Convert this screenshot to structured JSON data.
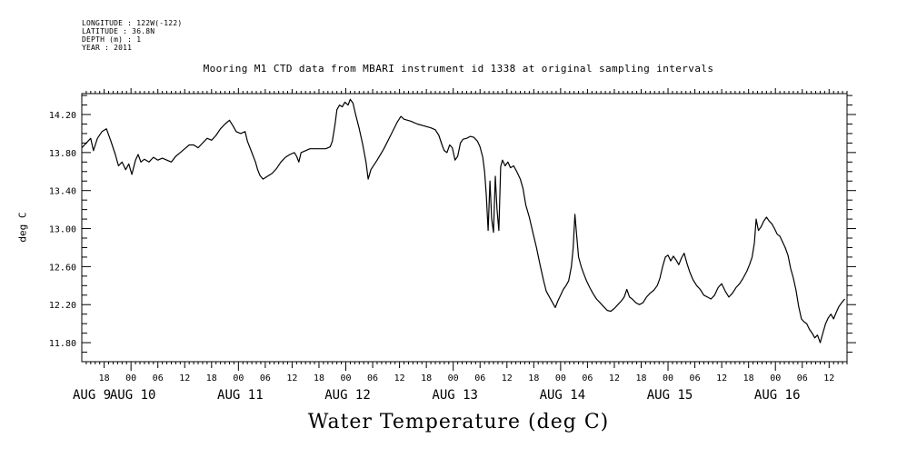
{
  "meta": {
    "longitude": "LONGITUDE : 122W(-122)",
    "latitude": "LATITUDE : 36.8N",
    "depth": "DEPTH (m) : 1",
    "year": "YEAR : 2011"
  },
  "chart_data": {
    "type": "line",
    "title": "Mooring M1 CTD data from MBARI instrument id 1338 at original sampling intervals",
    "ylabel": "deg C",
    "bottom_label": "Water Temperature (deg C)",
    "ylim": [
      11.6,
      14.42
    ],
    "xlim": [
      13.0,
      184.0
    ],
    "x_unit": "hours since AUG 9 00:00",
    "y_ticks": [
      {
        "value": 11.8,
        "label": "11.80"
      },
      {
        "value": 12.2,
        "label": "12.20"
      },
      {
        "value": 12.6,
        "label": "12.60"
      },
      {
        "value": 13.0,
        "label": "13.00"
      },
      {
        "value": 13.4,
        "label": "13.40"
      },
      {
        "value": 13.8,
        "label": "13.80"
      },
      {
        "value": 14.2,
        "label": "14.20"
      }
    ],
    "hour_labels": [
      {
        "x": 18,
        "label": "18"
      },
      {
        "x": 24,
        "label": "00"
      },
      {
        "x": 30,
        "label": "06"
      },
      {
        "x": 36,
        "label": "12"
      },
      {
        "x": 42,
        "label": "18"
      },
      {
        "x": 48,
        "label": "00"
      },
      {
        "x": 54,
        "label": "06"
      },
      {
        "x": 60,
        "label": "12"
      },
      {
        "x": 66,
        "label": "18"
      },
      {
        "x": 72,
        "label": "00"
      },
      {
        "x": 78,
        "label": "06"
      },
      {
        "x": 84,
        "label": "12"
      },
      {
        "x": 90,
        "label": "18"
      },
      {
        "x": 96,
        "label": "00"
      },
      {
        "x": 102,
        "label": "06"
      },
      {
        "x": 108,
        "label": "12"
      },
      {
        "x": 114,
        "label": "18"
      },
      {
        "x": 120,
        "label": "00"
      },
      {
        "x": 126,
        "label": "06"
      },
      {
        "x": 132,
        "label": "12"
      },
      {
        "x": 138,
        "label": "18"
      },
      {
        "x": 144,
        "label": "00"
      },
      {
        "x": 150,
        "label": "06"
      },
      {
        "x": 156,
        "label": "12"
      },
      {
        "x": 162,
        "label": "18"
      },
      {
        "x": 168,
        "label": "00"
      },
      {
        "x": 174,
        "label": "06"
      },
      {
        "x": 180,
        "label": "12"
      }
    ],
    "day_labels": [
      {
        "x": 0,
        "label": "AUG  9"
      },
      {
        "x": 24,
        "label": "AUG 10"
      },
      {
        "x": 48,
        "label": "AUG 11"
      },
      {
        "x": 72,
        "label": "AUG 12"
      },
      {
        "x": 96,
        "label": "AUG 13"
      },
      {
        "x": 120,
        "label": "AUG 14"
      },
      {
        "x": 144,
        "label": "AUG 15"
      },
      {
        "x": 168,
        "label": "AUG 16"
      }
    ],
    "series": [
      {
        "color": "#000000",
        "points": [
          [
            13.0,
            13.85
          ],
          [
            15.0,
            13.95
          ],
          [
            15.6,
            13.82
          ],
          [
            16.5,
            13.95
          ],
          [
            17.5,
            14.02
          ],
          [
            18.5,
            14.05
          ],
          [
            19.5,
            13.92
          ],
          [
            20.5,
            13.78
          ],
          [
            21.2,
            13.66
          ],
          [
            22.0,
            13.7
          ],
          [
            22.8,
            13.62
          ],
          [
            23.5,
            13.68
          ],
          [
            24.2,
            13.57
          ],
          [
            25.0,
            13.72
          ],
          [
            25.6,
            13.78
          ],
          [
            26.2,
            13.7
          ],
          [
            27.0,
            13.73
          ],
          [
            28.0,
            13.7
          ],
          [
            29.0,
            13.75
          ],
          [
            30.0,
            13.72
          ],
          [
            31.0,
            13.74
          ],
          [
            32.0,
            13.72
          ],
          [
            33.0,
            13.7
          ],
          [
            34.0,
            13.76
          ],
          [
            35.0,
            13.8
          ],
          [
            36.0,
            13.84
          ],
          [
            37.0,
            13.88
          ],
          [
            38.0,
            13.88
          ],
          [
            39.0,
            13.85
          ],
          [
            40.0,
            13.9
          ],
          [
            41.0,
            13.95
          ],
          [
            42.0,
            13.93
          ],
          [
            43.0,
            13.98
          ],
          [
            44.0,
            14.05
          ],
          [
            45.0,
            14.1
          ],
          [
            46.0,
            14.14
          ],
          [
            46.8,
            14.08
          ],
          [
            47.5,
            14.02
          ],
          [
            48.5,
            14.0
          ],
          [
            49.5,
            14.02
          ],
          [
            50.0,
            13.92
          ],
          [
            51.0,
            13.8
          ],
          [
            51.8,
            13.7
          ],
          [
            52.3,
            13.62
          ],
          [
            52.8,
            13.56
          ],
          [
            53.5,
            13.52
          ],
          [
            54.5,
            13.55
          ],
          [
            55.5,
            13.58
          ],
          [
            56.5,
            13.63
          ],
          [
            57.5,
            13.7
          ],
          [
            58.5,
            13.75
          ],
          [
            59.5,
            13.78
          ],
          [
            60.5,
            13.8
          ],
          [
            61.0,
            13.76
          ],
          [
            61.5,
            13.7
          ],
          [
            62.0,
            13.8
          ],
          [
            63.0,
            13.82
          ],
          [
            64.0,
            13.84
          ],
          [
            66.0,
            13.84
          ],
          [
            67.5,
            13.84
          ],
          [
            68.5,
            13.86
          ],
          [
            69.0,
            13.92
          ],
          [
            69.6,
            14.1
          ],
          [
            70.0,
            14.25
          ],
          [
            70.6,
            14.3
          ],
          [
            71.2,
            14.28
          ],
          [
            71.8,
            14.33
          ],
          [
            72.5,
            14.3
          ],
          [
            73.0,
            14.36
          ],
          [
            73.6,
            14.32
          ],
          [
            74.2,
            14.2
          ],
          [
            75.0,
            14.05
          ],
          [
            75.8,
            13.88
          ],
          [
            76.5,
            13.7
          ],
          [
            77.0,
            13.52
          ],
          [
            77.6,
            13.62
          ],
          [
            79.0,
            13.72
          ],
          [
            80.5,
            13.84
          ],
          [
            82.0,
            13.98
          ],
          [
            83.5,
            14.12
          ],
          [
            84.3,
            14.18
          ],
          [
            85.0,
            14.15
          ],
          [
            86.5,
            14.13
          ],
          [
            88.0,
            14.1
          ],
          [
            89.5,
            14.08
          ],
          [
            91.0,
            14.06
          ],
          [
            92.0,
            14.04
          ],
          [
            92.8,
            13.98
          ],
          [
            93.5,
            13.88
          ],
          [
            94.0,
            13.82
          ],
          [
            94.6,
            13.8
          ],
          [
            95.2,
            13.88
          ],
          [
            95.8,
            13.85
          ],
          [
            96.4,
            13.72
          ],
          [
            97.0,
            13.76
          ],
          [
            97.6,
            13.9
          ],
          [
            98.2,
            13.94
          ],
          [
            99.0,
            13.95
          ],
          [
            99.8,
            13.97
          ],
          [
            100.6,
            13.96
          ],
          [
            101.4,
            13.92
          ],
          [
            102.0,
            13.86
          ],
          [
            102.6,
            13.75
          ],
          [
            103.0,
            13.6
          ],
          [
            103.4,
            13.35
          ],
          [
            103.8,
            12.98
          ],
          [
            104.2,
            13.5
          ],
          [
            104.6,
            13.1
          ],
          [
            105.0,
            12.96
          ],
          [
            105.4,
            13.55
          ],
          [
            105.8,
            13.2
          ],
          [
            106.2,
            12.98
          ],
          [
            106.6,
            13.65
          ],
          [
            107.0,
            13.72
          ],
          [
            107.6,
            13.66
          ],
          [
            108.2,
            13.7
          ],
          [
            108.8,
            13.64
          ],
          [
            109.5,
            13.66
          ],
          [
            110.2,
            13.6
          ],
          [
            111.0,
            13.52
          ],
          [
            111.6,
            13.42
          ],
          [
            112.2,
            13.25
          ],
          [
            113.0,
            13.12
          ],
          [
            113.8,
            12.96
          ],
          [
            114.6,
            12.8
          ],
          [
            115.4,
            12.62
          ],
          [
            116.2,
            12.45
          ],
          [
            116.8,
            12.34
          ],
          [
            117.5,
            12.28
          ],
          [
            118.2,
            12.22
          ],
          [
            118.8,
            12.17
          ],
          [
            119.4,
            12.24
          ],
          [
            120.0,
            12.3
          ],
          [
            120.6,
            12.36
          ],
          [
            121.2,
            12.4
          ],
          [
            121.8,
            12.45
          ],
          [
            122.4,
            12.6
          ],
          [
            122.8,
            12.8
          ],
          [
            123.2,
            13.15
          ],
          [
            123.6,
            12.92
          ],
          [
            124.0,
            12.7
          ],
          [
            124.6,
            12.6
          ],
          [
            125.2,
            12.52
          ],
          [
            125.8,
            12.45
          ],
          [
            126.5,
            12.38
          ],
          [
            127.2,
            12.32
          ],
          [
            128.0,
            12.26
          ],
          [
            128.8,
            12.22
          ],
          [
            129.6,
            12.18
          ],
          [
            130.4,
            12.14
          ],
          [
            131.2,
            12.13
          ],
          [
            132.0,
            12.16
          ],
          [
            132.8,
            12.2
          ],
          [
            133.6,
            12.24
          ],
          [
            134.2,
            12.28
          ],
          [
            134.8,
            12.36
          ],
          [
            135.4,
            12.28
          ],
          [
            136.0,
            12.26
          ],
          [
            136.8,
            12.22
          ],
          [
            137.6,
            12.2
          ],
          [
            138.4,
            12.22
          ],
          [
            139.2,
            12.28
          ],
          [
            140.0,
            12.32
          ],
          [
            140.8,
            12.35
          ],
          [
            141.6,
            12.4
          ],
          [
            142.2,
            12.48
          ],
          [
            142.8,
            12.6
          ],
          [
            143.4,
            12.7
          ],
          [
            144.0,
            12.72
          ],
          [
            144.6,
            12.66
          ],
          [
            145.2,
            12.71
          ],
          [
            145.8,
            12.67
          ],
          [
            146.4,
            12.62
          ],
          [
            147.0,
            12.69
          ],
          [
            147.6,
            12.74
          ],
          [
            148.2,
            12.64
          ],
          [
            148.8,
            12.55
          ],
          [
            149.6,
            12.46
          ],
          [
            150.4,
            12.4
          ],
          [
            151.2,
            12.36
          ],
          [
            152.0,
            12.3
          ],
          [
            152.8,
            12.28
          ],
          [
            153.6,
            12.26
          ],
          [
            154.4,
            12.3
          ],
          [
            155.2,
            12.38
          ],
          [
            156.0,
            12.42
          ],
          [
            156.8,
            12.34
          ],
          [
            157.6,
            12.28
          ],
          [
            158.4,
            12.32
          ],
          [
            159.2,
            12.38
          ],
          [
            160.0,
            12.42
          ],
          [
            160.8,
            12.48
          ],
          [
            161.6,
            12.55
          ],
          [
            162.2,
            12.62
          ],
          [
            162.8,
            12.7
          ],
          [
            163.3,
            12.85
          ],
          [
            163.7,
            13.1
          ],
          [
            164.2,
            12.98
          ],
          [
            164.8,
            13.02
          ],
          [
            165.4,
            13.08
          ],
          [
            166.0,
            13.12
          ],
          [
            166.6,
            13.08
          ],
          [
            167.2,
            13.05
          ],
          [
            167.8,
            13.0
          ],
          [
            168.4,
            12.94
          ],
          [
            169.0,
            12.92
          ],
          [
            169.6,
            12.86
          ],
          [
            170.2,
            12.8
          ],
          [
            170.8,
            12.72
          ],
          [
            171.4,
            12.58
          ],
          [
            172.0,
            12.48
          ],
          [
            172.6,
            12.35
          ],
          [
            173.2,
            12.18
          ],
          [
            173.8,
            12.05
          ],
          [
            174.4,
            12.02
          ],
          [
            175.0,
            12.0
          ],
          [
            175.6,
            11.94
          ],
          [
            176.2,
            11.9
          ],
          [
            176.8,
            11.85
          ],
          [
            177.4,
            11.88
          ],
          [
            178.0,
            11.8
          ],
          [
            178.6,
            11.9
          ],
          [
            179.2,
            12.0
          ],
          [
            179.8,
            12.06
          ],
          [
            180.4,
            12.1
          ],
          [
            181.0,
            12.05
          ],
          [
            181.6,
            12.12
          ],
          [
            182.2,
            12.18
          ],
          [
            182.8,
            12.22
          ],
          [
            183.5,
            12.26
          ]
        ]
      }
    ]
  }
}
